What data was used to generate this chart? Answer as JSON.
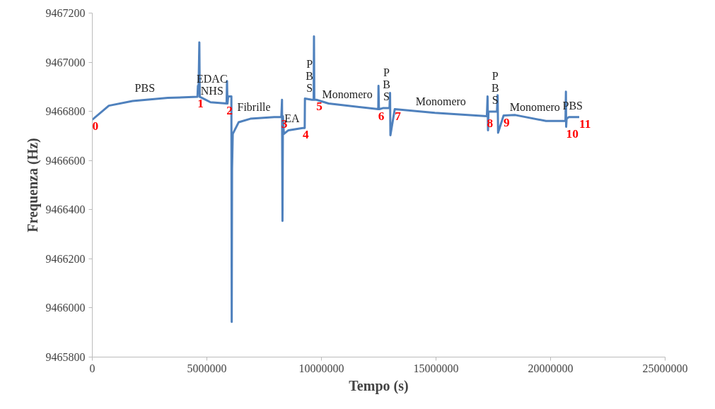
{
  "chart_data": {
    "type": "line",
    "xlabel": "Tempo (s)",
    "ylabel": "Frequenza (Hz)",
    "series": [
      {
        "color": "#4f81bd",
        "x": [
          0,
          722000,
          1754000,
          3300000,
          4590000,
          4610000,
          4640000,
          4672000,
          4690000,
          4850000,
          5160000,
          5860000,
          5880000,
          5900000,
          5930000,
          6070000,
          6085000,
          6100000,
          6130000,
          6390000,
          6900000,
          7940000,
          8250000,
          8280000,
          8300000,
          8320000,
          8360000,
          8560000,
          9180000,
          9270000,
          9280000,
          9590000,
          9660000,
          9675000,
          9690000,
          9780000,
          10310000,
          12480000,
          12490000,
          12510000,
          12530000,
          12680000,
          12970000,
          12995000,
          13010000,
          13200000,
          14950000,
          17220000,
          17250000,
          17270000,
          17290000,
          17480000,
          17660000,
          17690000,
          17710000,
          17950000,
          18460000,
          19800000,
          20650000,
          20670000,
          20680000,
          20700000,
          20800000,
          21250000
        ],
        "values": [
          9466766,
          9466823,
          9466842,
          9466855,
          9466859,
          9466904,
          9466904,
          9467081,
          9466859,
          9466852,
          9466837,
          9466832,
          9466923,
          9466832,
          9466861,
          9466861,
          9465943,
          9466565,
          9466708,
          9466756,
          9466770,
          9466777,
          9466777,
          9466847,
          9466354,
          9466780,
          9466708,
          9466723,
          9466732,
          9466732,
          9466852,
          9466847,
          9466847,
          9467105,
          9466847,
          9466847,
          9466832,
          9466809,
          9466904,
          9466809,
          9466809,
          9466813,
          9466813,
          9466875,
          9466703,
          9466809,
          9466794,
          9466780,
          9466861,
          9466723,
          9466799,
          9466799,
          9466799,
          9466866,
          9466713,
          9466783,
          9466785,
          9466761,
          9466761,
          9466880,
          9466737,
          9466770,
          9466777,
          9466777
        ]
      }
    ],
    "xlim": [
      0,
      25000000
    ],
    "xticks": [
      0,
      5000000,
      10000000,
      15000000,
      20000000,
      25000000
    ],
    "ylim": [
      9465800,
      9467200
    ],
    "yticks": [
      9465800,
      9466000,
      9466200,
      9466400,
      9466600,
      9466800,
      9467000,
      9467200
    ],
    "grid": false,
    "marker": "none",
    "line_style": "solid",
    "annotations": [
      "PBS",
      "EDAC\nNHS",
      "Fibrille",
      "EA",
      "P\nB\nS",
      "Monomero",
      "P\nB\nS",
      "Monomero",
      "P\nB\nS",
      "Monomero",
      "PBS",
      {
        "text": "0",
        "x": 0,
        "y": 9466766
      },
      {
        "text": "1",
        "x": 4590000,
        "y": 9466859
      },
      {
        "text": "2",
        "x": 5860000,
        "y": 9466832
      },
      {
        "text": "3",
        "x": 8250000,
        "y": 9466777
      },
      {
        "text": "4",
        "x": 9180000,
        "y": 9466732
      },
      {
        "text": "5",
        "x": 9780000,
        "y": 9466847
      },
      {
        "text": "6",
        "x": 12480000,
        "y": 9466809
      },
      {
        "text": "7",
        "x": 13200000,
        "y": 9466809
      },
      {
        "text": "8",
        "x": 17220000,
        "y": 9466780
      },
      {
        "text": "9",
        "x": 17950000,
        "y": 9466783
      },
      {
        "text": "10",
        "x": 20680000,
        "y": 9466737
      },
      {
        "text": "11",
        "x": 21250000,
        "y": 9466777
      }
    ]
  }
}
